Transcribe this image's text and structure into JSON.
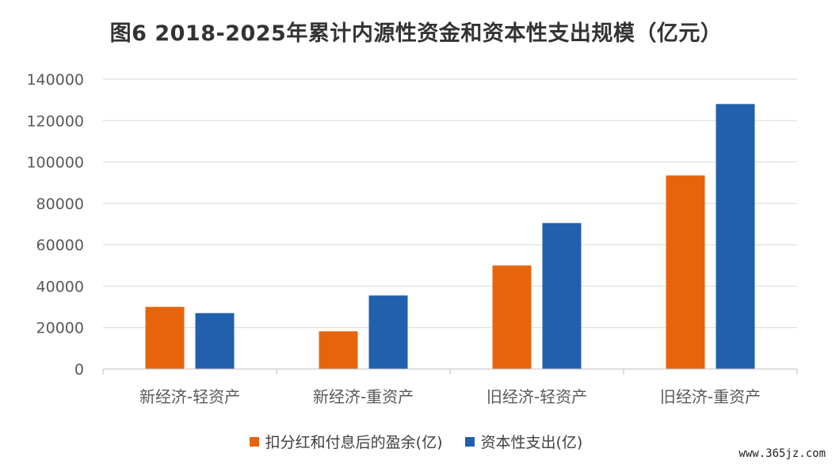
{
  "chart_data": {
    "type": "bar",
    "title": "图6  2018-2025年累计内源性资金和资本性支出规模（亿元）",
    "categories": [
      "新经济-轻资产",
      "新经济-重资产",
      "旧经济-轻资产",
      "旧经济-重资产"
    ],
    "series": [
      {
        "name": "扣分红和付息后的盈余(亿)",
        "values": [
          30000,
          18200,
          50000,
          93500
        ],
        "color": "#E8640C"
      },
      {
        "name": "资本性支出(亿)",
        "values": [
          27000,
          35500,
          70500,
          128000
        ],
        "color": "#2060AC"
      }
    ],
    "ylim": [
      0,
      140000
    ],
    "yticks": [
      0,
      20000,
      40000,
      60000,
      80000,
      100000,
      120000,
      140000
    ],
    "grid": true,
    "legend_position": "bottom"
  },
  "watermark": "www.365jz.com"
}
